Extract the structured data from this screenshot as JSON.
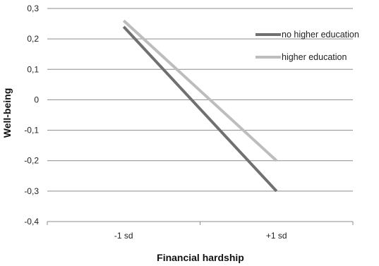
{
  "chart_data": {
    "type": "line",
    "title": "",
    "xlabel": "Financial hardship",
    "ylabel": "Well-being",
    "categories": [
      "-1 sd",
      "+1 sd"
    ],
    "yticks": [
      "0,3",
      "0,2",
      "0,1",
      "0",
      "-0,1",
      "-0,2",
      "-0,3",
      "-0,4"
    ],
    "ylim": [
      -0.4,
      0.3
    ],
    "grid": true,
    "legend_position": "top-right",
    "series": [
      {
        "name": "no higher education",
        "values": [
          0.24,
          -0.3
        ],
        "color": "#707070"
      },
      {
        "name": "higher education",
        "values": [
          0.26,
          -0.2
        ],
        "color": "#bdbdbd"
      }
    ]
  }
}
